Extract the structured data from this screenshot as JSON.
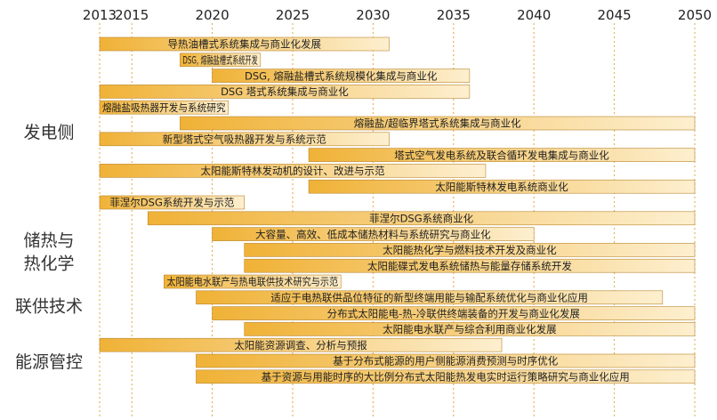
{
  "chart_data": {
    "type": "gantt",
    "x_ticks": [
      2013,
      2015,
      2020,
      2025,
      2030,
      2035,
      2040,
      2045,
      2050
    ],
    "xlim": [
      2013,
      2050
    ],
    "grid": "vertical dashed",
    "colors": {
      "start": "#f0b237",
      "end": "#fdefcf",
      "edge": "#b8862c",
      "grid": "#e8a33c"
    },
    "categories": [
      {
        "name": "发电侧",
        "rows": [
          0,
          15
        ]
      },
      {
        "name": "储热与\n热化学",
        "rows": [
          16,
          18
        ]
      },
      {
        "name": "联供技术",
        "rows": [
          19,
          22
        ]
      },
      {
        "name": "能源管控",
        "rows": [
          23,
          25
        ]
      }
    ],
    "tasks": [
      {
        "label": "导热油槽式系统集成与商业化发展",
        "start": 2013,
        "end": 2031
      },
      {
        "label": "DSG, 熔融盐槽式系统开发",
        "start": 2018,
        "end": 2023
      },
      {
        "label": "DSG, 熔融盐槽式系统规模化集成与商业化",
        "start": 2020,
        "end": 2036
      },
      {
        "label": "DSG 塔式系统集成与商业化",
        "start": 2013,
        "end": 2036
      },
      {
        "label": "熔融盐吸热器开发与系统研究",
        "start": 2013,
        "end": 2021
      },
      {
        "label": "熔融盐/超临界塔式系统集成与商业化",
        "start": 2018,
        "end": 2050
      },
      {
        "label": "新型塔式空气吸热器开发与系统示范",
        "start": 2013,
        "end": 2031
      },
      {
        "label": "塔式空气发电系统及联合循环发电集成与商业化",
        "start": 2026,
        "end": 2050
      },
      {
        "label": "太阳能斯特林发动机的设计、改进与示范",
        "start": 2013,
        "end": 2037
      },
      {
        "label": "太阳能斯特林发电系统商业化",
        "start": 2026,
        "end": 2050
      },
      {
        "label": "菲涅尔DSG系统开发与示范",
        "start": 2013,
        "end": 2022
      },
      {
        "label": "菲涅尔DSG系统商业化",
        "start": 2016,
        "end": 2050
      },
      {
        "label": "大容量、高效、低成本储热材料与系统研究与商业化",
        "start": 2020,
        "end": 2040
      },
      {
        "label": "太阳能热化学与燃料技术开发及商业化",
        "start": 2022,
        "end": 2050
      },
      {
        "label": "太阳能碟式发电系统储热与能量存储系统开发",
        "start": 2022,
        "end": 2050
      },
      {
        "label": "太阳能电水联产与热电联供技术研究与示范",
        "start": 2017,
        "end": 2028
      },
      {
        "label": "适应于电热联供品位特征的新型终端用能与输配系统优化与商业化应用",
        "start": 2019,
        "end": 2048
      },
      {
        "label": "分布式太阳能电-热-冷联供终端装备的开发与商业化发展",
        "start": 2020,
        "end": 2050
      },
      {
        "label": "太阳能电水联产与综合利用商业化发展",
        "start": 2022,
        "end": 2050
      },
      {
        "label": "太阳能资源调查、分析与预报",
        "start": 2013,
        "end": 2038
      },
      {
        "label": "基于分布式能源的用户侧能源消费预测与时序优化",
        "start": 2019,
        "end": 2050
      },
      {
        "label": "基于资源与用能时序的大比例分布式太阳能热发电实时运行策略研究与商业化应用",
        "start": 2019,
        "end": 2050
      }
    ]
  }
}
